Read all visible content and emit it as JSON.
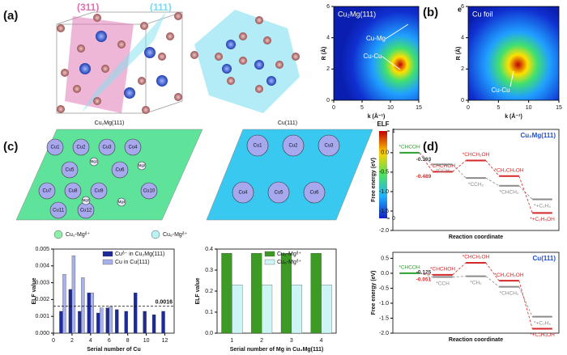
{
  "panels": {
    "a": {
      "label": "(a)",
      "planes": [
        "(311)",
        "(111)"
      ]
    },
    "b": {
      "label": "(b)",
      "inset_letter": "e"
    },
    "c": {
      "label": "(c)",
      "maps": [
        {
          "title": "Cu₂Mg(111)",
          "atoms": [
            "Cu1",
            "Cu2",
            "Cu3",
            "Cu4",
            "Cu5",
            "Cu6",
            "Cu7",
            "Cu8",
            "Cu9",
            "Cu10",
            "Cu11",
            "Cu12",
            "Mg1",
            "Mg2",
            "Mg3",
            "Mg4"
          ]
        },
        {
          "title": "Cu(111)",
          "atoms": [
            "Cu1",
            "Cu2",
            "Cu3",
            "Cu4",
            "Cu5",
            "Cu6"
          ]
        }
      ],
      "colorbar": {
        "title": "ELF",
        "ticks": [
          0,
          1
        ]
      },
      "legend": [
        "Cu₂-Mgᵟ⁺",
        "Cu₆-Mgᵟ⁺"
      ]
    },
    "d": {
      "label": "(d)"
    }
  },
  "chart_data": [
    {
      "type": "heatmap",
      "title": "Cu₂Mg(111)",
      "xlabel": "k (Å⁻¹)",
      "ylabel": "R (Å)",
      "xlim": [
        0,
        15
      ],
      "xticks": [
        0,
        5,
        10,
        15
      ],
      "ylim": [
        0,
        6
      ],
      "yticks": [
        0,
        2,
        4,
        6
      ],
      "annotations": [
        "Cu-Mg",
        "Cu-Cu"
      ]
    },
    {
      "type": "heatmap",
      "title": "Cu foil",
      "xlabel": "k (Å⁻¹)",
      "ylabel": "R (Å)",
      "xlim": [
        0,
        15
      ],
      "xticks": [
        0,
        5,
        10,
        15
      ],
      "ylim": [
        0,
        6
      ],
      "yticks": [
        0,
        2,
        4,
        6
      ],
      "annotations": [
        "Cu-Cu"
      ]
    },
    {
      "type": "bar",
      "xlabel": "Serial number of Cu",
      "ylabel": "ELF value",
      "x": [
        1,
        2,
        3,
        4,
        5,
        6,
        7,
        8,
        9,
        10,
        11,
        12
      ],
      "xlim": [
        0,
        13
      ],
      "xticks": [
        0,
        2,
        4,
        6,
        8,
        10,
        12
      ],
      "ylim": [
        0,
        0.005
      ],
      "yticks": [
        {
          "value": 0,
          "label": "0.000"
        },
        0.001,
        0.002,
        0.003,
        0.004,
        0.005
      ],
      "series": [
        {
          "name": "Cuᵟ⁻ in Cu₂Mg(111)",
          "color": "#1c2a9a",
          "values": [
            0.0013,
            0.0026,
            0.0013,
            0.0024,
            0.0012,
            0.0015,
            0.0014,
            0.0013,
            0.0024,
            0.0013,
            0.0011,
            0.0013
          ]
        },
        {
          "name": "Cu in Cu(111)",
          "color": "#a9b1ea",
          "values": [
            0.0035,
            0.0046,
            0.0033,
            0.0024,
            0.0015,
            0.0016,
            null,
            null,
            null,
            null,
            null,
            null
          ]
        }
      ],
      "ref_line": 0.0016
    },
    {
      "type": "bar",
      "xlabel": "Serial number of Mg in Cu₂Mg(111)",
      "ylabel": "ELF value",
      "categories": [
        1,
        2,
        3,
        4
      ],
      "ylim": [
        0,
        0.4
      ],
      "yticks": [
        {
          "value": 0,
          "label": "0.0"
        },
        0.1,
        0.2,
        0.3,
        0.4
      ],
      "series": [
        {
          "name": "Cu₂-Mgᵟ⁺",
          "color": "#3d9a24",
          "values": [
            0.38,
            0.38,
            0.38,
            0.38
          ]
        },
        {
          "name": "Cu₆-Mgᵟ⁺",
          "color": "#cdf5f6",
          "values": [
            0.23,
            0.23,
            0.23,
            0.23
          ]
        }
      ]
    },
    {
      "type": "energy",
      "title": "Cu₂Mg(111)",
      "xlabel": "Reaction coordinate",
      "ylabel": "Free energy (eV)",
      "categories": [
        null,
        null,
        null,
        null,
        null
      ],
      "ylim": [
        -2.0,
        0.6
      ],
      "yticks": [
        {
          "value": 0,
          "label": "0.0"
        },
        -0.5,
        {
          "value": -1,
          "label": "-1.0"
        },
        -1.5,
        {
          "value": -2,
          "label": "-2.0"
        }
      ],
      "series": [
        {
          "color": "#2ca02c",
          "values": [
            0,
            null,
            null,
            null,
            null
          ],
          "point_labels": [
            "*CHCOH",
            null,
            null,
            null,
            null
          ]
        },
        {
          "color": "#d62728",
          "values": [
            null,
            -0.489,
            -0.2,
            -0.6,
            -1.55
          ],
          "point_labels": [
            null,
            "*CHCHOH",
            "*CHCH₂OH",
            "*CH₂CH₂OH",
            "*+C₂H₅OH"
          ]
        },
        {
          "color": "#8a8a8a",
          "values": [
            null,
            -0.303,
            -0.65,
            -0.85,
            -1.2
          ],
          "point_labels": [
            null,
            "*CCH",
            "*CCH₂",
            "*CHCH₂",
            "*+C₂H₄"
          ]
        }
      ]
    },
    {
      "type": "energy",
      "title": "Cu(111)",
      "xlabel": "Reaction coordinate",
      "ylabel": "Free energy (eV)",
      "categories": [
        null,
        null,
        null,
        null,
        null
      ],
      "ylim": [
        -2.0,
        0.7
      ],
      "yticks": [
        0.5,
        {
          "value": 0,
          "label": "0.0"
        },
        -0.5,
        {
          "value": -1,
          "label": "-1.0"
        },
        -1.5,
        {
          "value": -2,
          "label": "-2.0"
        }
      ],
      "series": [
        {
          "color": "#2ca02c",
          "values": [
            0,
            null,
            null,
            null,
            null
          ],
          "point_labels": [
            "*CHCOH",
            null,
            null,
            null,
            null
          ]
        },
        {
          "color": "#d62728",
          "values": [
            null,
            -0.051,
            0.35,
            -0.25,
            -1.85
          ],
          "point_labels": [
            null,
            "*CHCHOH",
            "*CHCH₂OH",
            "*CH₂CH₂OH",
            "*+C₂H₅OH"
          ]
        },
        {
          "color": "#8a8a8a",
          "values": [
            null,
            -0.125,
            -0.1,
            -0.45,
            -1.45
          ],
          "point_labels": [
            null,
            "*CCH",
            "*CH₂",
            "*CHCH₂",
            "*+C₂H₄"
          ]
        }
      ]
    }
  ]
}
